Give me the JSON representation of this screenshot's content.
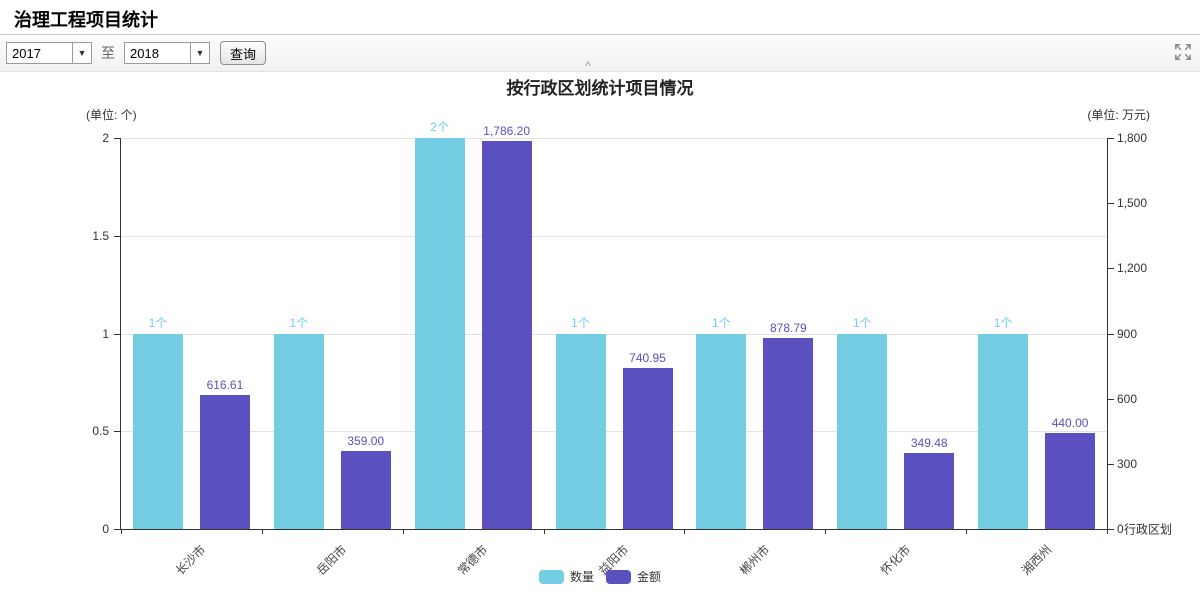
{
  "page": {
    "title": "治理工程项目统计"
  },
  "toolbar": {
    "year_from": "2017",
    "to_label": "至",
    "year_to": "2018",
    "query_label": "查询"
  },
  "icons": {
    "dropdown_arrow": "▼",
    "collapse_toolbar": "^",
    "fullscreen": "expand-arrows"
  },
  "chart_data": {
    "type": "bar",
    "title": "按行政区划统计项目情况",
    "categories": [
      "长沙市",
      "岳阳市",
      "常德市",
      "益阳市",
      "郴州市",
      "怀化市",
      "湘西州"
    ],
    "series": [
      {
        "name": "数量",
        "axis": "left",
        "color": "#73cde3",
        "values": [
          1,
          1,
          2,
          1,
          1,
          1,
          1
        ],
        "labels": [
          "1个",
          "1个",
          "2个",
          "1个",
          "1个",
          "1个",
          "1个"
        ]
      },
      {
        "name": "金额",
        "axis": "right",
        "color": "#5a50c0",
        "values": [
          616.61,
          359.0,
          1786.2,
          740.95,
          878.79,
          349.48,
          440.0
        ],
        "labels": [
          "616.61",
          "359.00",
          "1,786.20",
          "740.95",
          "878.79",
          "349.48",
          "440.00"
        ]
      }
    ],
    "left_axis": {
      "unit_label": "(单位: 个)",
      "ticks": [
        "0",
        "0.5",
        "1",
        "1.5",
        "2"
      ],
      "min": 0,
      "max": 2
    },
    "right_axis": {
      "unit_label": "(单位: 万元)",
      "ticks": [
        "0",
        "300",
        "600",
        "900",
        "1,200",
        "1,500",
        "1,800"
      ],
      "min": 0,
      "max": 1800
    },
    "xaxis_name": "行政区划",
    "legend_position": "bottom",
    "grid": true
  }
}
